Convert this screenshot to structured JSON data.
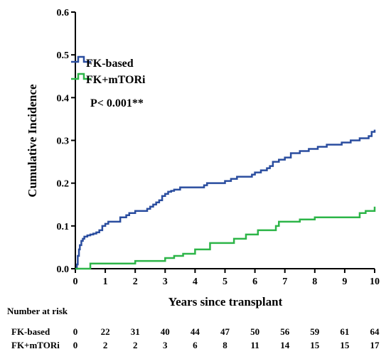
{
  "chart_data": {
    "type": "line",
    "step": true,
    "xlabel": "Years since transplant",
    "ylabel": "Cumulative Incidence",
    "xlim": [
      0,
      10
    ],
    "ylim": [
      0,
      0.6
    ],
    "xticks": [
      "0",
      "1",
      "2",
      "3",
      "4",
      "5",
      "6",
      "7",
      "8",
      "9",
      "10"
    ],
    "yticks": [
      "0.0",
      "0.1",
      "0.2",
      "0.3",
      "0.4",
      "0.5",
      "0.6"
    ],
    "legend_placement": "upper-left",
    "annotation": "P< 0.001**",
    "series": [
      {
        "name": "FK-based",
        "color": "#2a4d9f",
        "x": [
          0,
          0.05,
          0.08,
          0.12,
          0.15,
          0.2,
          0.25,
          0.3,
          0.4,
          0.5,
          0.6,
          0.7,
          0.8,
          0.9,
          1.0,
          1.1,
          1.5,
          1.7,
          1.8,
          2.0,
          2.4,
          2.5,
          2.6,
          2.7,
          2.8,
          2.9,
          3.0,
          3.1,
          3.2,
          3.3,
          3.5,
          4.3,
          4.4,
          4.5,
          5.0,
          5.2,
          5.4,
          5.9,
          6.0,
          6.2,
          6.4,
          6.5,
          6.6,
          6.8,
          7.0,
          7.2,
          7.5,
          7.8,
          8.1,
          8.4,
          8.6,
          8.9,
          9.2,
          9.5,
          9.8,
          9.9,
          10.0
        ],
        "y": [
          0,
          0.01,
          0.03,
          0.045,
          0.055,
          0.065,
          0.07,
          0.075,
          0.078,
          0.08,
          0.082,
          0.085,
          0.09,
          0.1,
          0.105,
          0.11,
          0.12,
          0.125,
          0.13,
          0.135,
          0.14,
          0.145,
          0.15,
          0.155,
          0.16,
          0.17,
          0.175,
          0.18,
          0.182,
          0.185,
          0.19,
          0.195,
          0.2,
          0.2,
          0.205,
          0.21,
          0.215,
          0.22,
          0.225,
          0.23,
          0.235,
          0.24,
          0.25,
          0.255,
          0.26,
          0.27,
          0.275,
          0.28,
          0.285,
          0.29,
          0.29,
          0.295,
          0.3,
          0.305,
          0.31,
          0.32,
          0.325
        ]
      },
      {
        "name": "FK+mTORi",
        "color": "#2db548",
        "x": [
          0,
          0.45,
          0.5,
          2.0,
          3.0,
          3.3,
          3.6,
          4.0,
          4.5,
          5.3,
          5.7,
          6.1,
          6.7,
          6.8,
          7.5,
          8.0,
          9.5,
          9.7,
          10.0
        ],
        "y": [
          0,
          0.0,
          0.012,
          0.018,
          0.025,
          0.03,
          0.035,
          0.045,
          0.06,
          0.07,
          0.08,
          0.09,
          0.1,
          0.11,
          0.115,
          0.12,
          0.13,
          0.135,
          0.145
        ]
      }
    ],
    "risk_table": {
      "title": "Number at risk",
      "rows": [
        {
          "label": "FK-based",
          "values": [
            "0",
            "22",
            "31",
            "40",
            "44",
            "47",
            "50",
            "56",
            "59",
            "61",
            "64"
          ]
        },
        {
          "label": "FK+mTORi",
          "values": [
            "0",
            "2",
            "2",
            "3",
            "6",
            "8",
            "11",
            "14",
            "15",
            "15",
            "17"
          ]
        }
      ]
    }
  }
}
